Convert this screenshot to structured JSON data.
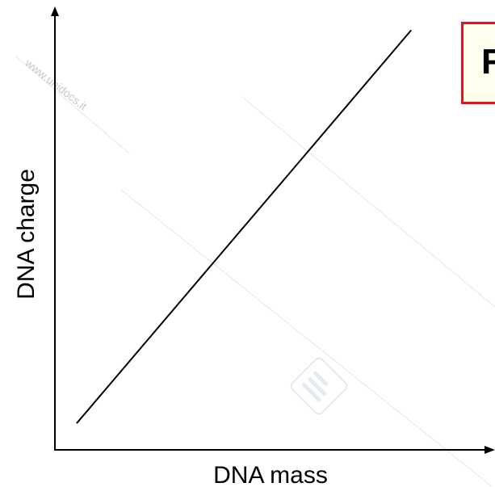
{
  "chart_data": {
    "type": "line",
    "title": "",
    "xlabel": "DNA mass",
    "ylabel": "DNA charge",
    "xlim": [
      0,
      1
    ],
    "ylim": [
      0,
      1
    ],
    "grid": false,
    "series": [
      {
        "x": [
          0.05,
          0.82
        ],
        "y": [
          0.06,
          0.95
        ]
      }
    ]
  },
  "callout": {
    "text": "R",
    "border_color": "#e8141c",
    "background_color": "#ffffee"
  },
  "watermark": {
    "text": "www.unidocs.it",
    "logo_icon": "unidocs-logo-icon"
  }
}
